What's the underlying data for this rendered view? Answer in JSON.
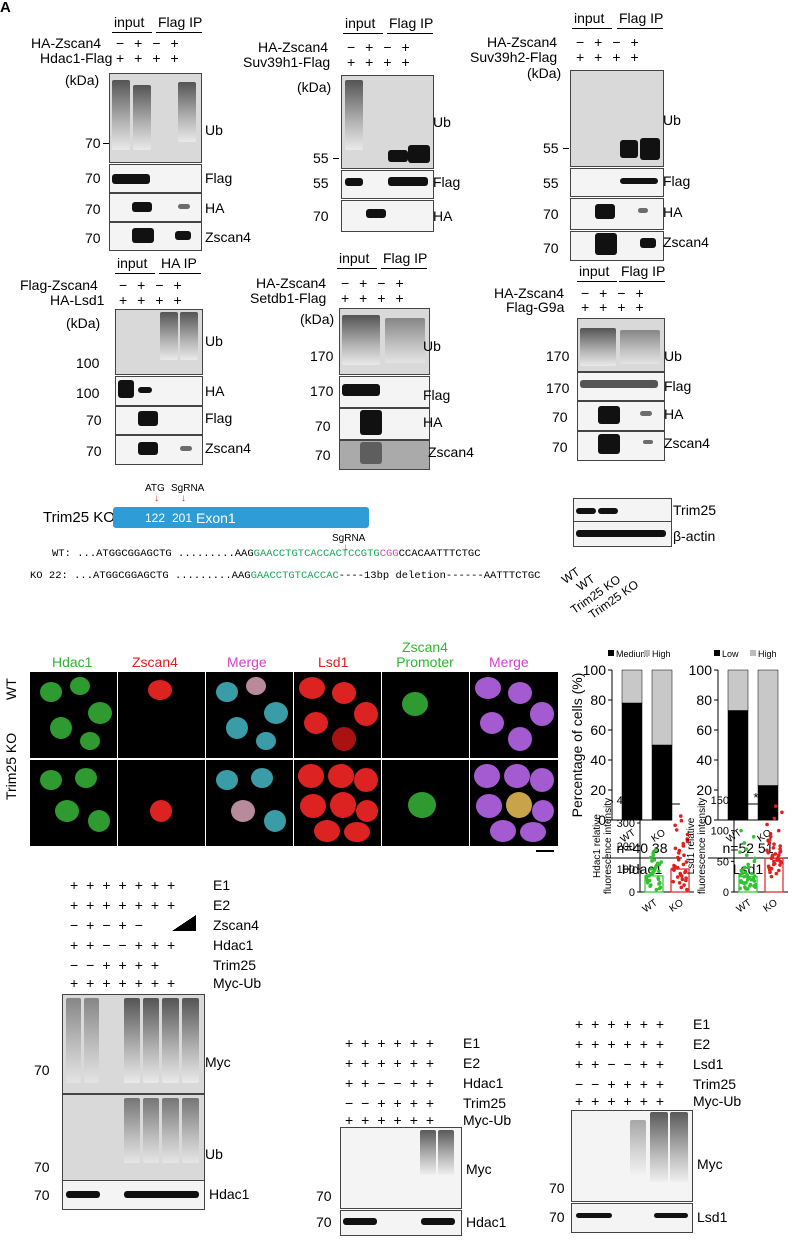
{
  "panel_letters": [
    "A"
  ],
  "common": {
    "input": "input",
    "flag_ip": "Flag IP",
    "ha_ip": "HA IP",
    "kda": "(kDa)",
    "plus": "+",
    "minus": "−",
    "ub": "Ub",
    "flag": "Flag",
    "ha": "HA",
    "zscan4": "Zscan4",
    "myc": "Myc",
    "hdac1": "Hdac1",
    "lsd1": "Lsd1"
  },
  "blot_a1": {
    "row1": "HA-Zscan4",
    "row2": "Hdac1-Flag",
    "m1": "70",
    "m2": "70",
    "m3": "70",
    "m4": "70"
  },
  "blot_a2": {
    "row1": "HA-Zscan4",
    "row2": "Suv39h1-Flag",
    "m1": "55",
    "m2": "55",
    "m3": "70"
  },
  "blot_a3": {
    "row1": "HA-Zscan4",
    "row2": "Suv39h2-Flag",
    "m1": "55",
    "m2": "55",
    "m3": "70",
    "m4": "70"
  },
  "blot_a4": {
    "row1": "Flag-Zscan4",
    "row2": "HA-Lsd1",
    "m1": "100",
    "m2": "100",
    "m3": "70",
    "m4": "70"
  },
  "blot_a5": {
    "row1": "HA-Zscan4",
    "row2": "Setdb1-Flag",
    "m1": "170",
    "m2": "170",
    "m3": "70",
    "m4": "70"
  },
  "blot_a6": {
    "row1": "HA-Zscan4",
    "row2": "Flag-G9a",
    "m1": "170",
    "m2": "170",
    "m3": "70",
    "m4": "70"
  },
  "ko": {
    "title": "Trim25 KO",
    "atg": "ATG",
    "sgrna": "SgRNA",
    "p1": "122",
    "p2": "201",
    "exon": "Exon1",
    "sgrna2": "SgRNA",
    "wt_label": "WT:",
    "wt_a": "...ATGGCGGAGCTG",
    "wt_dots": ".........AAG",
    "wt_g": "GAACCTGTCACCACTCCGTG",
    "wt_m": "CGG",
    "wt_e": "CCACAATTTCTGC",
    "ko_label": "KO 22:",
    "ko_a": "...ATGGCGGAGCTG",
    "ko_dots": ".........AAG",
    "ko_g": "GAACCTGTCACCAC",
    "ko_e": "----13bp  deletion------AATTTCTGC",
    "wb_trim25": "Trim25",
    "wb_actin": "β-actin",
    "lanes": [
      "WT",
      "WT",
      "Trim25 KO",
      "Trim25 KO"
    ]
  },
  "imaging": {
    "cols": [
      "Hdac1",
      "Zscan4",
      "Merge",
      "Lsd1",
      "Zscan4 Promoter GFP",
      "Merge"
    ],
    "rows": [
      "WT",
      "Trim25 KO"
    ]
  },
  "chart_data": [
    {
      "type": "bar",
      "stacked": true,
      "categories": [
        "WT",
        "KO"
      ],
      "series": [
        {
          "name": "Medium",
          "values": [
            78,
            50
          ]
        },
        {
          "name": "High",
          "values": [
            22,
            50
          ]
        }
      ],
      "ylabel": "Percentage of cells (%)",
      "ylim": [
        0,
        100
      ],
      "yticks": [
        0,
        20,
        40,
        60,
        80,
        100
      ],
      "n_text": "n=40  38",
      "group_label": "Hdac1"
    },
    {
      "type": "bar",
      "stacked": true,
      "categories": [
        "WT",
        "KO"
      ],
      "series": [
        {
          "name": "Low",
          "values": [
            73,
            23
          ]
        },
        {
          "name": "High",
          "values": [
            27,
            77
          ]
        }
      ],
      "ylim": [
        0,
        100
      ],
      "yticks": [
        0,
        20,
        40,
        60,
        80,
        100
      ],
      "n_text": "n=52  51",
      "group_label": "Lsd1"
    },
    {
      "type": "scatter",
      "categories": [
        "WT",
        "KO"
      ],
      "bar_means": [
        70,
        100
      ],
      "ylabel_1": "Hdac1 relative",
      "ylabel_2": "fluorescence intensity",
      "ylim": [
        0,
        400
      ],
      "yticks": [
        0,
        100,
        200,
        300,
        400
      ],
      "significance": "*",
      "points": {
        "WT": [
          10,
          20,
          30,
          40,
          50,
          60,
          70,
          80,
          90,
          100,
          110,
          120,
          130,
          140,
          150,
          160,
          170,
          180,
          25,
          35,
          45,
          55,
          65,
          75,
          85,
          95,
          105,
          115,
          125,
          135,
          15,
          60,
          70,
          80,
          40,
          50
        ],
        "KO": [
          10,
          30,
          50,
          70,
          90,
          110,
          130,
          150,
          170,
          190,
          210,
          230,
          250,
          270,
          290,
          310,
          330,
          20,
          40,
          60,
          80,
          100,
          120,
          140,
          160,
          180,
          200,
          220,
          75,
          85,
          95,
          105,
          115,
          55,
          65,
          45
        ]
      }
    },
    {
      "type": "scatter",
      "categories": [
        "WT",
        "KO"
      ],
      "bar_means": [
        25,
        55
      ],
      "ylabel_1": "Lsd1 relative",
      "ylabel_2": "fluorescence intensity",
      "ylim": [
        0,
        150
      ],
      "yticks": [
        0,
        50,
        100,
        150
      ],
      "significance": "***",
      "points": {
        "WT": [
          5,
          8,
          10,
          12,
          15,
          18,
          20,
          22,
          25,
          28,
          30,
          35,
          40,
          45,
          50,
          55,
          60,
          65,
          70,
          80,
          90,
          100,
          5,
          10,
          15,
          20,
          25,
          30,
          12,
          18,
          22,
          28,
          35,
          8,
          14,
          26,
          32,
          40,
          6,
          16
        ],
        "KO": [
          30,
          35,
          40,
          45,
          50,
          55,
          60,
          65,
          70,
          75,
          80,
          85,
          90,
          95,
          100,
          110,
          120,
          130,
          140,
          25,
          32,
          38,
          42,
          48,
          52,
          58,
          62,
          68,
          72,
          78,
          44,
          54,
          64,
          46,
          56,
          66,
          50,
          60,
          36,
          84
        ]
      }
    }
  ],
  "blot_c1": {
    "rows": [
      "E1",
      "E2",
      "Zscan4",
      "Hdac1",
      "Trim25",
      "Myc-Ub"
    ],
    "m1": "70",
    "m2": "70",
    "m3": "70"
  },
  "blot_c2": {
    "rows": [
      "E1",
      "E2",
      "Hdac1",
      "Trim25",
      "Myc-Ub"
    ],
    "m1": "70",
    "m2": "70"
  },
  "blot_c3": {
    "rows": [
      "E1",
      "E2",
      "Lsd1",
      "Trim25",
      "Myc-Ub"
    ],
    "m1": "70",
    "m2": "70"
  }
}
